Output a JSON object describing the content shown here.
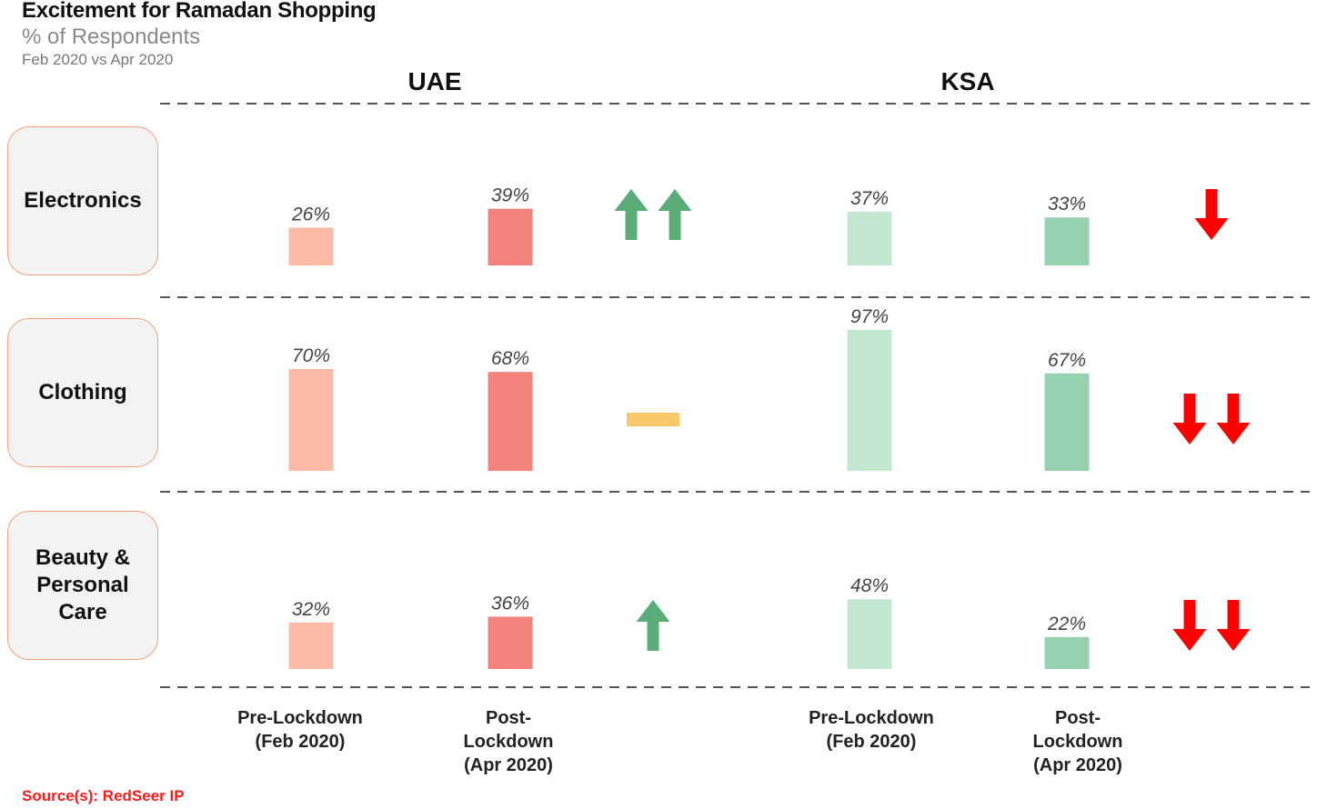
{
  "header": {
    "title": "Excitement for Ramadan Shopping",
    "subtitle": "% of Respondents",
    "period": "Feb 2020 vs Apr 2020"
  },
  "source": "Source(s): RedSeer IP",
  "chart_data": {
    "type": "bar",
    "title": "Excitement for Ramadan Shopping",
    "subtitle": "% of Respondents",
    "regions": [
      "UAE",
      "KSA"
    ],
    "columns": [
      {
        "lines": [
          "Pre-Lockdown",
          "(Feb 2020)"
        ]
      },
      {
        "lines": [
          "Post-",
          "Lockdown",
          "(Apr 2020)"
        ]
      }
    ],
    "categories": [
      {
        "label_lines": [
          "Electronics"
        ]
      },
      {
        "label_lines": [
          "Clothing"
        ]
      },
      {
        "label_lines": [
          "Beauty &",
          "Personal",
          "Care"
        ]
      }
    ],
    "series": [
      {
        "region": "UAE",
        "period": "Pre-Lockdown (Feb 2020)",
        "values": [
          26,
          70,
          32
        ],
        "color": "#fbbaa5"
      },
      {
        "region": "UAE",
        "period": "Post-Lockdown (Apr 2020)",
        "values": [
          39,
          68,
          36
        ],
        "color": "#f4827c"
      },
      {
        "region": "KSA",
        "period": "Pre-Lockdown (Feb 2020)",
        "values": [
          37,
          97,
          48
        ],
        "color": "#c3e6d1"
      },
      {
        "region": "KSA",
        "period": "Post-Lockdown (Apr 2020)",
        "values": [
          33,
          67,
          22
        ],
        "color": "#96d2b0"
      }
    ],
    "value_suffix": "%",
    "trend_indicators": {
      "UAE": [
        {
          "direction": "up",
          "count": 2
        },
        {
          "direction": "flat",
          "count": 1
        },
        {
          "direction": "up",
          "count": 1
        }
      ],
      "KSA": [
        {
          "direction": "down",
          "count": 1
        },
        {
          "direction": "down",
          "count": 2
        },
        {
          "direction": "down",
          "count": 2
        }
      ]
    },
    "colors": {
      "up": "#5aad78",
      "down": "#ff0000",
      "flat": "#f8c86a",
      "divider": "#555555"
    },
    "grid": false,
    "legend": "none"
  }
}
